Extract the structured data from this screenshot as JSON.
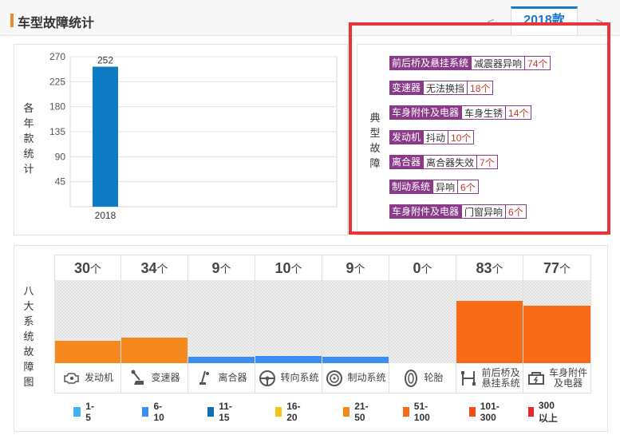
{
  "header": {
    "title": "车型故障统计",
    "prev_label": "<",
    "next_label": ">",
    "active_tab": "2018款"
  },
  "chart_data": {
    "type": "bar",
    "categories": [
      "2018"
    ],
    "values": [
      252
    ],
    "ylabel": "各年款统计",
    "ylim": [
      0,
      270
    ],
    "yticks": [
      45,
      90,
      135,
      180,
      225,
      270
    ],
    "bar_color": "#0e7ac4",
    "grid": true
  },
  "faults": {
    "label": "典型故障",
    "items": [
      {
        "category": "前后桥及悬挂系统",
        "desc": "减震器异响",
        "count": "74个"
      },
      {
        "category": "变速器",
        "desc": "无法换挡",
        "count": "18个"
      },
      {
        "category": "车身附件及电器",
        "desc": "车身生锈",
        "count": "14个"
      },
      {
        "category": "发动机",
        "desc": "抖动",
        "count": "10个"
      },
      {
        "category": "离合器",
        "desc": "离合器失效",
        "count": "7个"
      },
      {
        "category": "制动系统",
        "desc": "异响",
        "count": "6个"
      },
      {
        "category": "车身附件及电器",
        "desc": "门窗异响",
        "count": "6个"
      }
    ]
  },
  "systems": {
    "label": "八大系统故障图",
    "unit": "个",
    "items": [
      {
        "name": "发动机",
        "count": "30",
        "value": 30,
        "color": "#f5891f",
        "icon": "engine-icon"
      },
      {
        "name": "变速器",
        "count": "34",
        "value": 34,
        "color": "#f5891f",
        "icon": "gearbox-icon"
      },
      {
        "name": "离合器",
        "count": "9",
        "value": 9,
        "color": "#3b8ef0",
        "icon": "clutch-icon"
      },
      {
        "name": "转向系统",
        "count": "10",
        "value": 10,
        "color": "#3b8ef0",
        "icon": "steering-wheel-icon"
      },
      {
        "name": "制动系统",
        "count": "9",
        "value": 9,
        "color": "#3b8ef0",
        "icon": "brake-disc-icon"
      },
      {
        "name": "轮胎",
        "count": "0",
        "value": 0,
        "color": "#3b8ef0",
        "icon": "tire-icon"
      },
      {
        "name": "前后桥及悬挂系统",
        "name_line1": "前后桥及",
        "name_line2": "悬挂系统",
        "count": "83",
        "value": 83,
        "color": "#f86b17",
        "icon": "suspension-icon"
      },
      {
        "name": "车身附件及电器",
        "name_line1": "车身附件",
        "name_line2": "及电器",
        "count": "77",
        "value": 77,
        "color": "#f86b17",
        "icon": "car-body-icon"
      }
    ]
  },
  "legend": [
    {
      "label": "1-5",
      "color": "#3fb1f0"
    },
    {
      "label": "6-10",
      "color": "#3b8ef0"
    },
    {
      "label": "11-15",
      "color": "#0e6fb8"
    },
    {
      "label": "16-20",
      "color": "#f5c518"
    },
    {
      "label": "21-50",
      "color": "#f5891f"
    },
    {
      "label": "51-100",
      "color": "#f86b17"
    },
    {
      "label": "101-300",
      "color": "#f0511a"
    },
    {
      "label": "300以上",
      "color": "#e8262b"
    }
  ]
}
